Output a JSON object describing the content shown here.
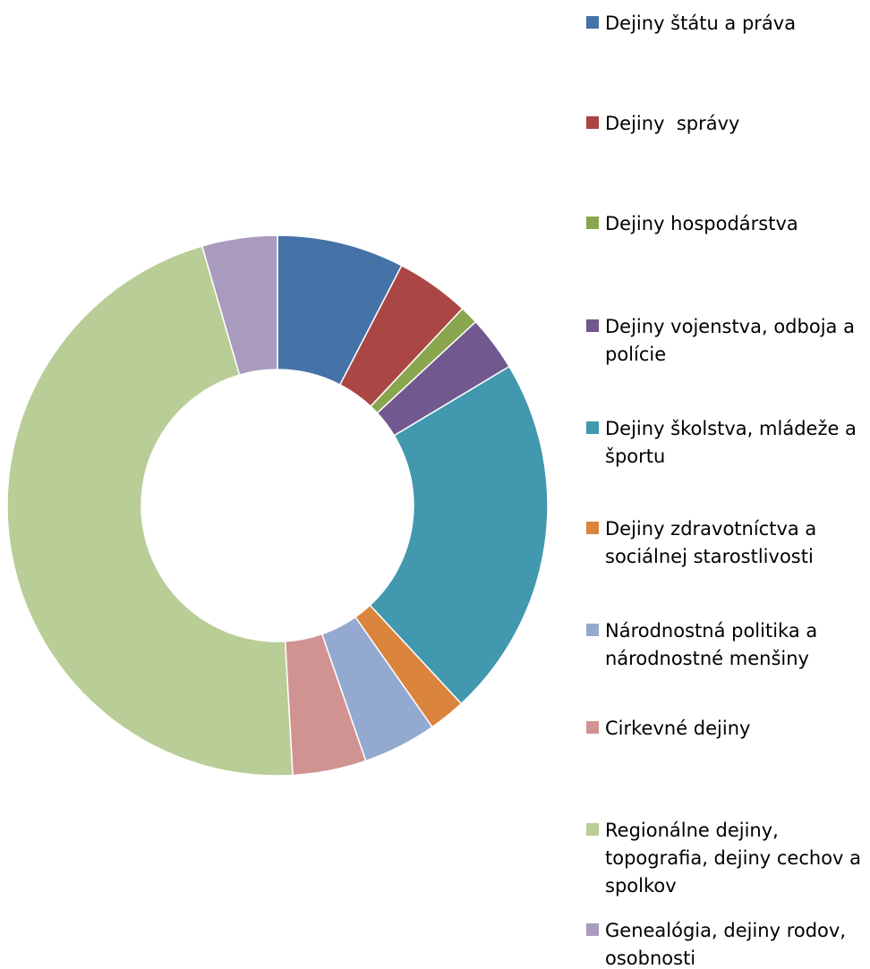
{
  "chart_data": {
    "type": "pie",
    "donut": true,
    "title": "",
    "legend_position": "right",
    "slices": [
      {
        "label": "Dejiny štátu a práva",
        "value": 7.6,
        "color": "#4572A7"
      },
      {
        "label": "Dejiny  správy",
        "value": 4.4,
        "color": "#AA4643"
      },
      {
        "label": "Dejiny hospodárstva",
        "value": 1.1,
        "color": "#89A54E"
      },
      {
        "label": "Dejiny vojenstva, odboja a polície",
        "value": 3.3,
        "color": "#71588F"
      },
      {
        "label": "Dejiny školstva, mládeže a športu",
        "value": 21.7,
        "color": "#4198AF"
      },
      {
        "label": "Dejiny zdravotníctva a sociálnej starostlivosti",
        "value": 2.2,
        "color": "#DB843D"
      },
      {
        "label": "Národnostná politika a národnostné menšiny",
        "value": 4.4,
        "color": "#93A9CF"
      },
      {
        "label": "Cirkevné dejiny",
        "value": 4.4,
        "color": "#D19392"
      },
      {
        "label": "Regionálne dejiny, topografia, dejiny cechov a spolkov",
        "value": 46.4,
        "color": "#B9CD96"
      },
      {
        "label": "Genealógia, dejiny rodov, osobnosti",
        "value": 4.5,
        "color": "#A99BBD"
      }
    ],
    "legend_lines": [
      [
        "Dejiny štátu a práva"
      ],
      [
        "Dejiny  správy"
      ],
      [
        "Dejiny hospodárstva"
      ],
      [
        "Dejiny vojenstva, odboja a",
        "polície"
      ],
      [
        "Dejiny školstva, mládeže a",
        "športu"
      ],
      [
        "Dejiny zdravotníctva a",
        "sociálnej starostlivosti"
      ],
      [
        "Národnostná politika a",
        "národnostné menšiny"
      ],
      [
        "Cirkevné dejiny"
      ],
      [
        "Regionálne dejiny,",
        "topografia, dejiny cechov a",
        "spolkov"
      ],
      [
        "Genealógia, dejiny rodov,",
        "osobnosti"
      ]
    ]
  }
}
